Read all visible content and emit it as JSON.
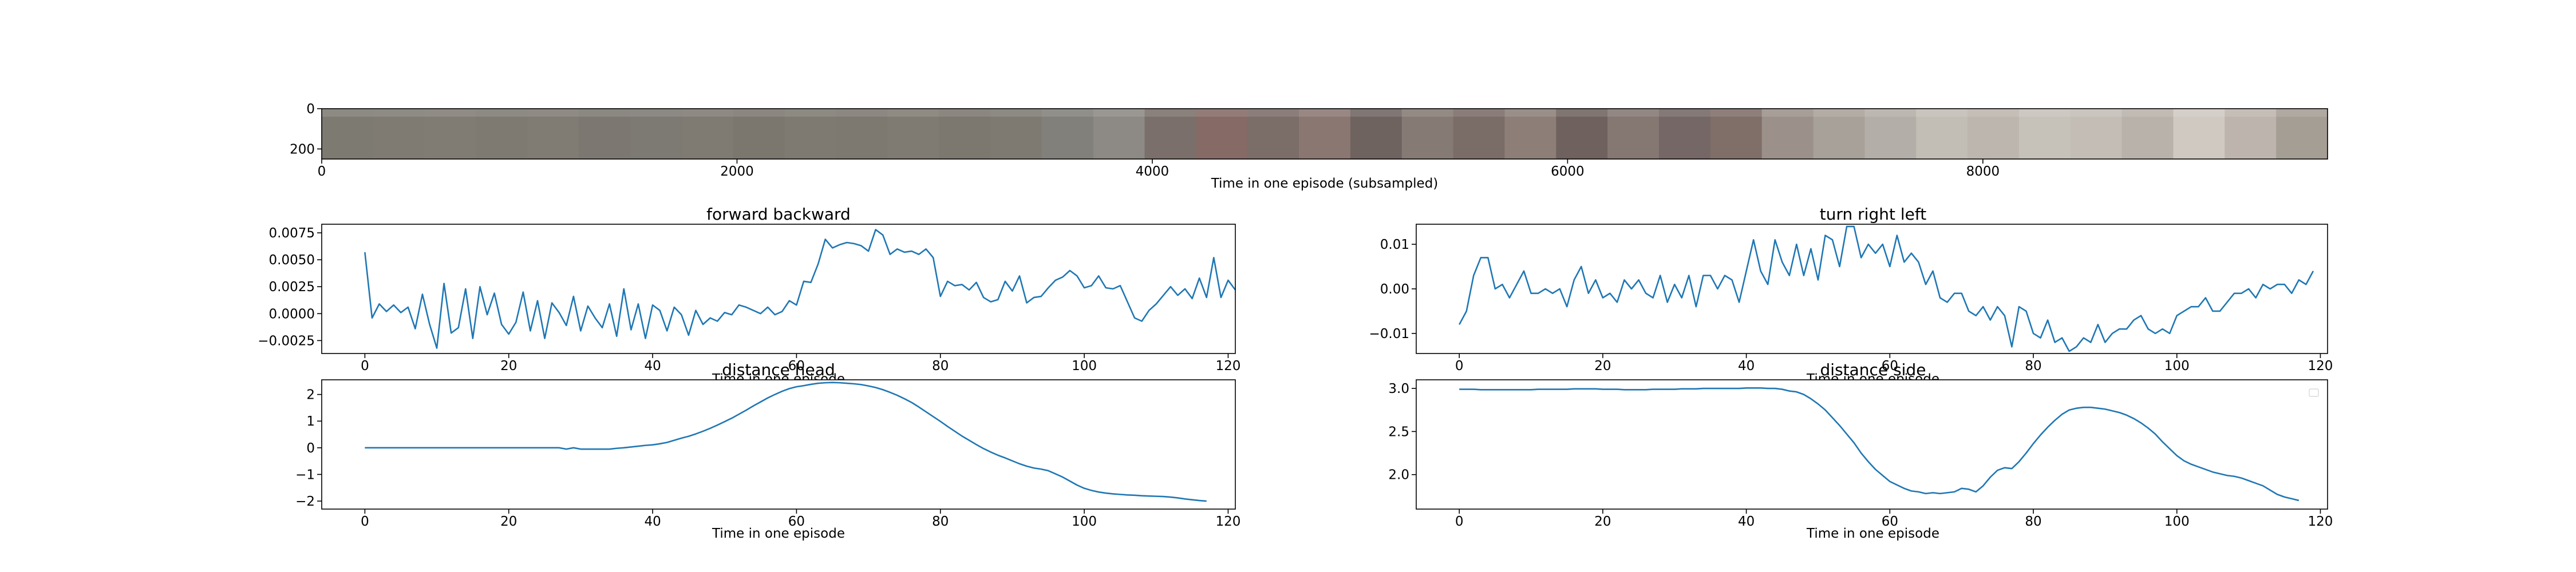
{
  "chart_data": [
    {
      "type": "image-strip",
      "xlabel": "Time in one episode (subsampled)",
      "xlim": [
        0,
        9660
      ],
      "ylim": [
        250,
        0
      ],
      "x_ticks": [
        0,
        2000,
        4000,
        6000,
        8000
      ],
      "y_ticks": [
        0,
        200
      ],
      "frame_count": 39,
      "frame_colors": [
        "#7d7a72",
        "#7f7b73",
        "#817c73",
        "#7e7a72",
        "#807c74",
        "#7c7871",
        "#7d7973",
        "#7f7a72",
        "#7b776f",
        "#7e7a71",
        "#7d7870",
        "#807b72",
        "#7c776f",
        "#7e7a72",
        "#82807a",
        "#8d8984",
        "#7a6f6a",
        "#856a66",
        "#7b6d68",
        "#8a7772",
        "#6f6360",
        "#867a74",
        "#7a6c67",
        "#8d7f78",
        "#6f625e",
        "#857772",
        "#746765",
        "#806e69",
        "#9b918a",
        "#a8a199",
        "#b3aea7",
        "#c2bdb5",
        "#bcb6ae",
        "#c6c1b9",
        "#c3bdb5",
        "#b9b2aa",
        "#cfc9c1",
        "#bdb5ad",
        "#a59e95"
      ]
    },
    {
      "type": "line",
      "title": "forward backward",
      "xlabel": "Time in one episode",
      "ylabel": "",
      "xlim": [
        -6,
        121
      ],
      "ylim": [
        -0.0037,
        0.0083
      ],
      "x_ticks": [
        0,
        20,
        40,
        60,
        80,
        100,
        120
      ],
      "y_ticks": [
        -0.0025,
        0.0,
        0.0025,
        0.005,
        0.0075
      ],
      "y_tick_labels": [
        "−0.0025",
        "0.0000",
        "0.0025",
        "0.0050",
        "0.0075"
      ],
      "series": [
        {
          "values": [
            0.0057,
            -0.0004,
            0.0009,
            0.0002,
            0.0008,
            0.0001,
            0.0006,
            -0.0014,
            0.0018,
            -0.001,
            -0.0032,
            0.0028,
            -0.0018,
            -0.0013,
            0.0023,
            -0.0023,
            0.0025,
            -0.0001,
            0.0019,
            -0.001,
            -0.0019,
            -0.0008,
            0.002,
            -0.0016,
            0.0012,
            -0.0023,
            0.001,
            0.0001,
            -0.0011,
            0.0016,
            -0.0016,
            0.0007,
            -0.0004,
            -0.0013,
            0.0009,
            -0.0021,
            0.0023,
            -0.0015,
            0.0009,
            -0.0023,
            0.0008,
            0.0003,
            -0.0016,
            0.0006,
            -0.0001,
            -0.002,
            0.0003,
            -0.001,
            -0.0004,
            -0.0007,
            0.0001,
            -0.0001,
            0.0008,
            0.0006,
            0.0003,
            0.0,
            0.0006,
            -0.0001,
            0.0002,
            0.0012,
            0.0008,
            0.003,
            0.0029,
            0.0046,
            0.0069,
            0.0061,
            0.0064,
            0.0066,
            0.0065,
            0.0063,
            0.0058,
            0.0078,
            0.0073,
            0.0055,
            0.006,
            0.0057,
            0.0058,
            0.0055,
            0.006,
            0.0052,
            0.0016,
            0.003,
            0.0026,
            0.0027,
            0.0022,
            0.0029,
            0.0015,
            0.0011,
            0.0013,
            0.003,
            0.0021,
            0.0035,
            0.001,
            0.0015,
            0.0016,
            0.0024,
            0.0031,
            0.0034,
            0.004,
            0.0035,
            0.0024,
            0.0026,
            0.0035,
            0.0024,
            0.0023,
            0.0026,
            0.0011,
            -0.0004,
            -0.0007,
            0.0003,
            0.0009,
            0.0017,
            0.0025,
            0.0017,
            0.0023,
            0.0014,
            0.0033,
            0.0015,
            0.0052,
            0.0015,
            0.0031,
            0.0022
          ]
        }
      ]
    },
    {
      "type": "line",
      "title": "turn right left",
      "xlabel": "Time in one episode",
      "ylabel": "",
      "xlim": [
        -6,
        121
      ],
      "ylim": [
        -0.0145,
        0.0145
      ],
      "x_ticks": [
        0,
        20,
        40,
        60,
        80,
        100,
        120
      ],
      "y_ticks": [
        -0.01,
        0.0,
        0.01
      ],
      "y_tick_labels": [
        "−0.01",
        "0.00",
        "0.01"
      ],
      "series": [
        {
          "values": [
            -0.008,
            -0.005,
            0.003,
            0.007,
            0.007,
            0.0,
            0.001,
            -0.002,
            0.001,
            0.004,
            -0.001,
            -0.001,
            0.0,
            -0.001,
            0.0,
            -0.004,
            0.002,
            0.005,
            -0.001,
            0.002,
            -0.002,
            -0.001,
            -0.003,
            0.002,
            0.0,
            0.002,
            -0.001,
            -0.002,
            0.003,
            -0.003,
            0.001,
            -0.002,
            0.003,
            -0.004,
            0.003,
            0.003,
            0.0,
            0.003,
            0.002,
            -0.003,
            0.004,
            0.011,
            0.004,
            0.001,
            0.011,
            0.006,
            0.003,
            0.01,
            0.003,
            0.009,
            0.002,
            0.012,
            0.011,
            0.005,
            0.014,
            0.014,
            0.007,
            0.01,
            0.008,
            0.01,
            0.005,
            0.012,
            0.006,
            0.008,
            0.006,
            0.001,
            0.004,
            -0.002,
            -0.003,
            -0.001,
            -0.001,
            -0.005,
            -0.006,
            -0.004,
            -0.007,
            -0.004,
            -0.006,
            -0.013,
            -0.004,
            -0.005,
            -0.01,
            -0.011,
            -0.007,
            -0.012,
            -0.011,
            -0.014,
            -0.013,
            -0.011,
            -0.012,
            -0.008,
            -0.012,
            -0.01,
            -0.009,
            -0.009,
            -0.007,
            -0.006,
            -0.009,
            -0.01,
            -0.009,
            -0.01,
            -0.006,
            -0.005,
            -0.004,
            -0.004,
            -0.002,
            -0.005,
            -0.005,
            -0.003,
            -0.001,
            -0.001,
            0.0,
            -0.002,
            0.001,
            0.0,
            0.001,
            0.001,
            -0.001,
            0.002,
            0.001,
            0.004
          ]
        }
      ]
    },
    {
      "type": "line",
      "title": "distance head",
      "xlabel": "Time in one episode",
      "ylabel": "",
      "xlim": [
        -6,
        121
      ],
      "ylim": [
        -2.3,
        2.55
      ],
      "x_ticks": [
        0,
        20,
        40,
        60,
        80,
        100,
        120
      ],
      "y_ticks": [
        -2,
        -1,
        0,
        1,
        2
      ],
      "y_tick_labels": [
        "−2",
        "−1",
        "0",
        "1",
        "2"
      ],
      "series": [
        {
          "values": [
            0.0,
            0.0,
            0.0,
            0.0,
            0.0,
            0.0,
            0.0,
            0.0,
            0.0,
            0.0,
            0.0,
            0.0,
            0.0,
            0.0,
            0.0,
            0.0,
            0.0,
            0.0,
            0.0,
            0.0,
            0.0,
            0.0,
            0.0,
            0.0,
            0.0,
            0.0,
            0.0,
            0.0,
            -0.05,
            0.0,
            -0.05,
            -0.05,
            -0.05,
            -0.05,
            -0.05,
            -0.02,
            0.0,
            0.03,
            0.06,
            0.09,
            0.11,
            0.15,
            0.2,
            0.28,
            0.36,
            0.43,
            0.52,
            0.62,
            0.73,
            0.85,
            0.98,
            1.11,
            1.26,
            1.41,
            1.57,
            1.72,
            1.87,
            2.0,
            2.12,
            2.22,
            2.29,
            2.33,
            2.38,
            2.42,
            2.44,
            2.45,
            2.44,
            2.42,
            2.4,
            2.37,
            2.32,
            2.26,
            2.18,
            2.08,
            1.97,
            1.84,
            1.7,
            1.53,
            1.35,
            1.17,
            0.99,
            0.8,
            0.62,
            0.44,
            0.28,
            0.12,
            -0.03,
            -0.16,
            -0.28,
            -0.38,
            -0.49,
            -0.6,
            -0.69,
            -0.76,
            -0.8,
            -0.86,
            -0.98,
            -1.1,
            -1.25,
            -1.4,
            -1.52,
            -1.6,
            -1.66,
            -1.7,
            -1.73,
            -1.75,
            -1.77,
            -1.78,
            -1.8,
            -1.81,
            -1.82,
            -1.83,
            -1.85,
            -1.88,
            -1.92,
            -1.95,
            -1.98,
            -2.0
          ]
        }
      ]
    },
    {
      "type": "line",
      "title": "distance side",
      "xlabel": "Time in one episode",
      "ylabel": "",
      "xlim": [
        -6,
        121
      ],
      "ylim": [
        1.6,
        3.1
      ],
      "x_ticks": [
        0,
        20,
        40,
        60,
        80,
        100,
        120
      ],
      "y_ticks": [
        2.0,
        2.5,
        3.0
      ],
      "y_tick_labels": [
        "2.0",
        "2.5",
        "3.0"
      ],
      "legend": "top-right",
      "series": [
        {
          "values": [
            2.99,
            2.99,
            2.99,
            2.985,
            2.985,
            2.985,
            2.985,
            2.985,
            2.985,
            2.985,
            2.985,
            2.99,
            2.99,
            2.99,
            2.99,
            2.99,
            2.995,
            2.995,
            2.995,
            2.995,
            2.99,
            2.99,
            2.99,
            2.985,
            2.985,
            2.985,
            2.985,
            2.99,
            2.99,
            2.99,
            2.99,
            2.995,
            2.995,
            2.995,
            3.0,
            3.0,
            3.0,
            3.0,
            3.0,
            3.0,
            3.005,
            3.005,
            3.005,
            3.0,
            3.0,
            2.99,
            2.97,
            2.96,
            2.93,
            2.88,
            2.82,
            2.75,
            2.66,
            2.57,
            2.47,
            2.37,
            2.25,
            2.15,
            2.06,
            1.99,
            1.92,
            1.88,
            1.84,
            1.81,
            1.8,
            1.78,
            1.79,
            1.78,
            1.79,
            1.8,
            1.84,
            1.83,
            1.8,
            1.87,
            1.97,
            2.05,
            2.08,
            2.07,
            2.15,
            2.25,
            2.36,
            2.46,
            2.55,
            2.63,
            2.7,
            2.75,
            2.77,
            2.78,
            2.78,
            2.77,
            2.76,
            2.74,
            2.72,
            2.69,
            2.65,
            2.6,
            2.54,
            2.47,
            2.38,
            2.3,
            2.22,
            2.16,
            2.12,
            2.09,
            2.06,
            2.03,
            2.01,
            1.99,
            1.98,
            1.96,
            1.93,
            1.9,
            1.87,
            1.82,
            1.77,
            1.74,
            1.72,
            1.7
          ]
        }
      ]
    }
  ]
}
